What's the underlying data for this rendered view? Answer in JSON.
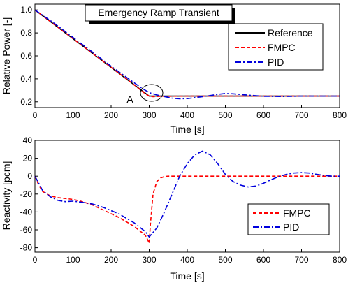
{
  "chart_data": [
    {
      "type": "line",
      "title": "Emergency Ramp Transient",
      "xlabel": "Time [s]",
      "ylabel": "Relative Power [-]",
      "xlim": [
        0,
        800
      ],
      "ylim": [
        0.15,
        1.05
      ],
      "xticks": [
        "0",
        "100",
        "200",
        "300",
        "400",
        "500",
        "600",
        "700",
        "800"
      ],
      "yticks": [
        "0.2",
        "0.4",
        "0.6",
        "0.8",
        "1.0"
      ],
      "annotation": "A",
      "legend": "top-right",
      "series": [
        {
          "name": "Reference",
          "color": "#000000",
          "style": "solid",
          "x": [
            0,
            300,
            800
          ],
          "y": [
            1.0,
            0.25,
            0.25
          ]
        },
        {
          "name": "FMPC",
          "color": "#ff0000",
          "style": "dashed",
          "x": [
            0,
            50,
            100,
            150,
            200,
            250,
            290,
            300,
            310,
            330,
            400,
            500,
            600,
            700,
            800
          ],
          "y": [
            1.0,
            0.875,
            0.75,
            0.625,
            0.5,
            0.375,
            0.27,
            0.25,
            0.245,
            0.248,
            0.25,
            0.25,
            0.25,
            0.25,
            0.25
          ]
        },
        {
          "name": "PID",
          "color": "#0000dd",
          "style": "dashdot",
          "x": [
            0,
            50,
            100,
            150,
            200,
            250,
            280,
            300,
            320,
            340,
            360,
            380,
            400,
            440,
            480,
            500,
            520,
            560,
            600,
            650,
            700,
            800
          ],
          "y": [
            1.0,
            0.885,
            0.76,
            0.635,
            0.51,
            0.39,
            0.32,
            0.28,
            0.26,
            0.245,
            0.232,
            0.226,
            0.228,
            0.245,
            0.265,
            0.272,
            0.27,
            0.258,
            0.248,
            0.246,
            0.25,
            0.25
          ]
        }
      ]
    },
    {
      "type": "line",
      "title": "",
      "xlabel": "Time [s]",
      "ylabel": "Reactivity [pcm]",
      "xlim": [
        0,
        800
      ],
      "ylim": [
        -85,
        40
      ],
      "xticks": [
        "0",
        "100",
        "200",
        "300",
        "400",
        "500",
        "600",
        "700",
        "800"
      ],
      "yticks": [
        "-80",
        "-60",
        "-40",
        "-20",
        "0",
        "20",
        "40"
      ],
      "legend": "bottom-right",
      "series": [
        {
          "name": "FMPC",
          "color": "#ff0000",
          "style": "dashed",
          "x": [
            0,
            10,
            20,
            40,
            60,
            80,
            100,
            120,
            150,
            180,
            220,
            260,
            290,
            297,
            300,
            303,
            310,
            320,
            330,
            340,
            350,
            400,
            500,
            600,
            700,
            800
          ],
          "y": [
            0,
            -10,
            -17,
            -22,
            -24,
            -25,
            -26,
            -28,
            -32,
            -38,
            -46,
            -56,
            -66,
            -72,
            -75,
            -55,
            -20,
            -6,
            -2,
            -0.5,
            0,
            0,
            0,
            0,
            0,
            0
          ]
        },
        {
          "name": "PID",
          "color": "#0000dd",
          "style": "dashdot",
          "x": [
            0,
            10,
            20,
            40,
            60,
            80,
            100,
            120,
            150,
            180,
            220,
            260,
            290,
            300,
            320,
            340,
            360,
            380,
            400,
            420,
            440,
            460,
            480,
            500,
            520,
            540,
            560,
            580,
            600,
            620,
            640,
            660,
            680,
            700,
            720,
            740,
            760,
            780,
            800
          ],
          "y": [
            0,
            -8,
            -16,
            -23,
            -27,
            -28.5,
            -28,
            -29,
            -31,
            -35,
            -42,
            -52,
            -62,
            -68,
            -58,
            -40,
            -20,
            0,
            14,
            24,
            28,
            24,
            14,
            2,
            -6,
            -10,
            -12,
            -11,
            -8,
            -4,
            -0.5,
            2,
            3.5,
            4,
            3.5,
            2,
            0.8,
            0,
            0
          ]
        }
      ]
    }
  ]
}
